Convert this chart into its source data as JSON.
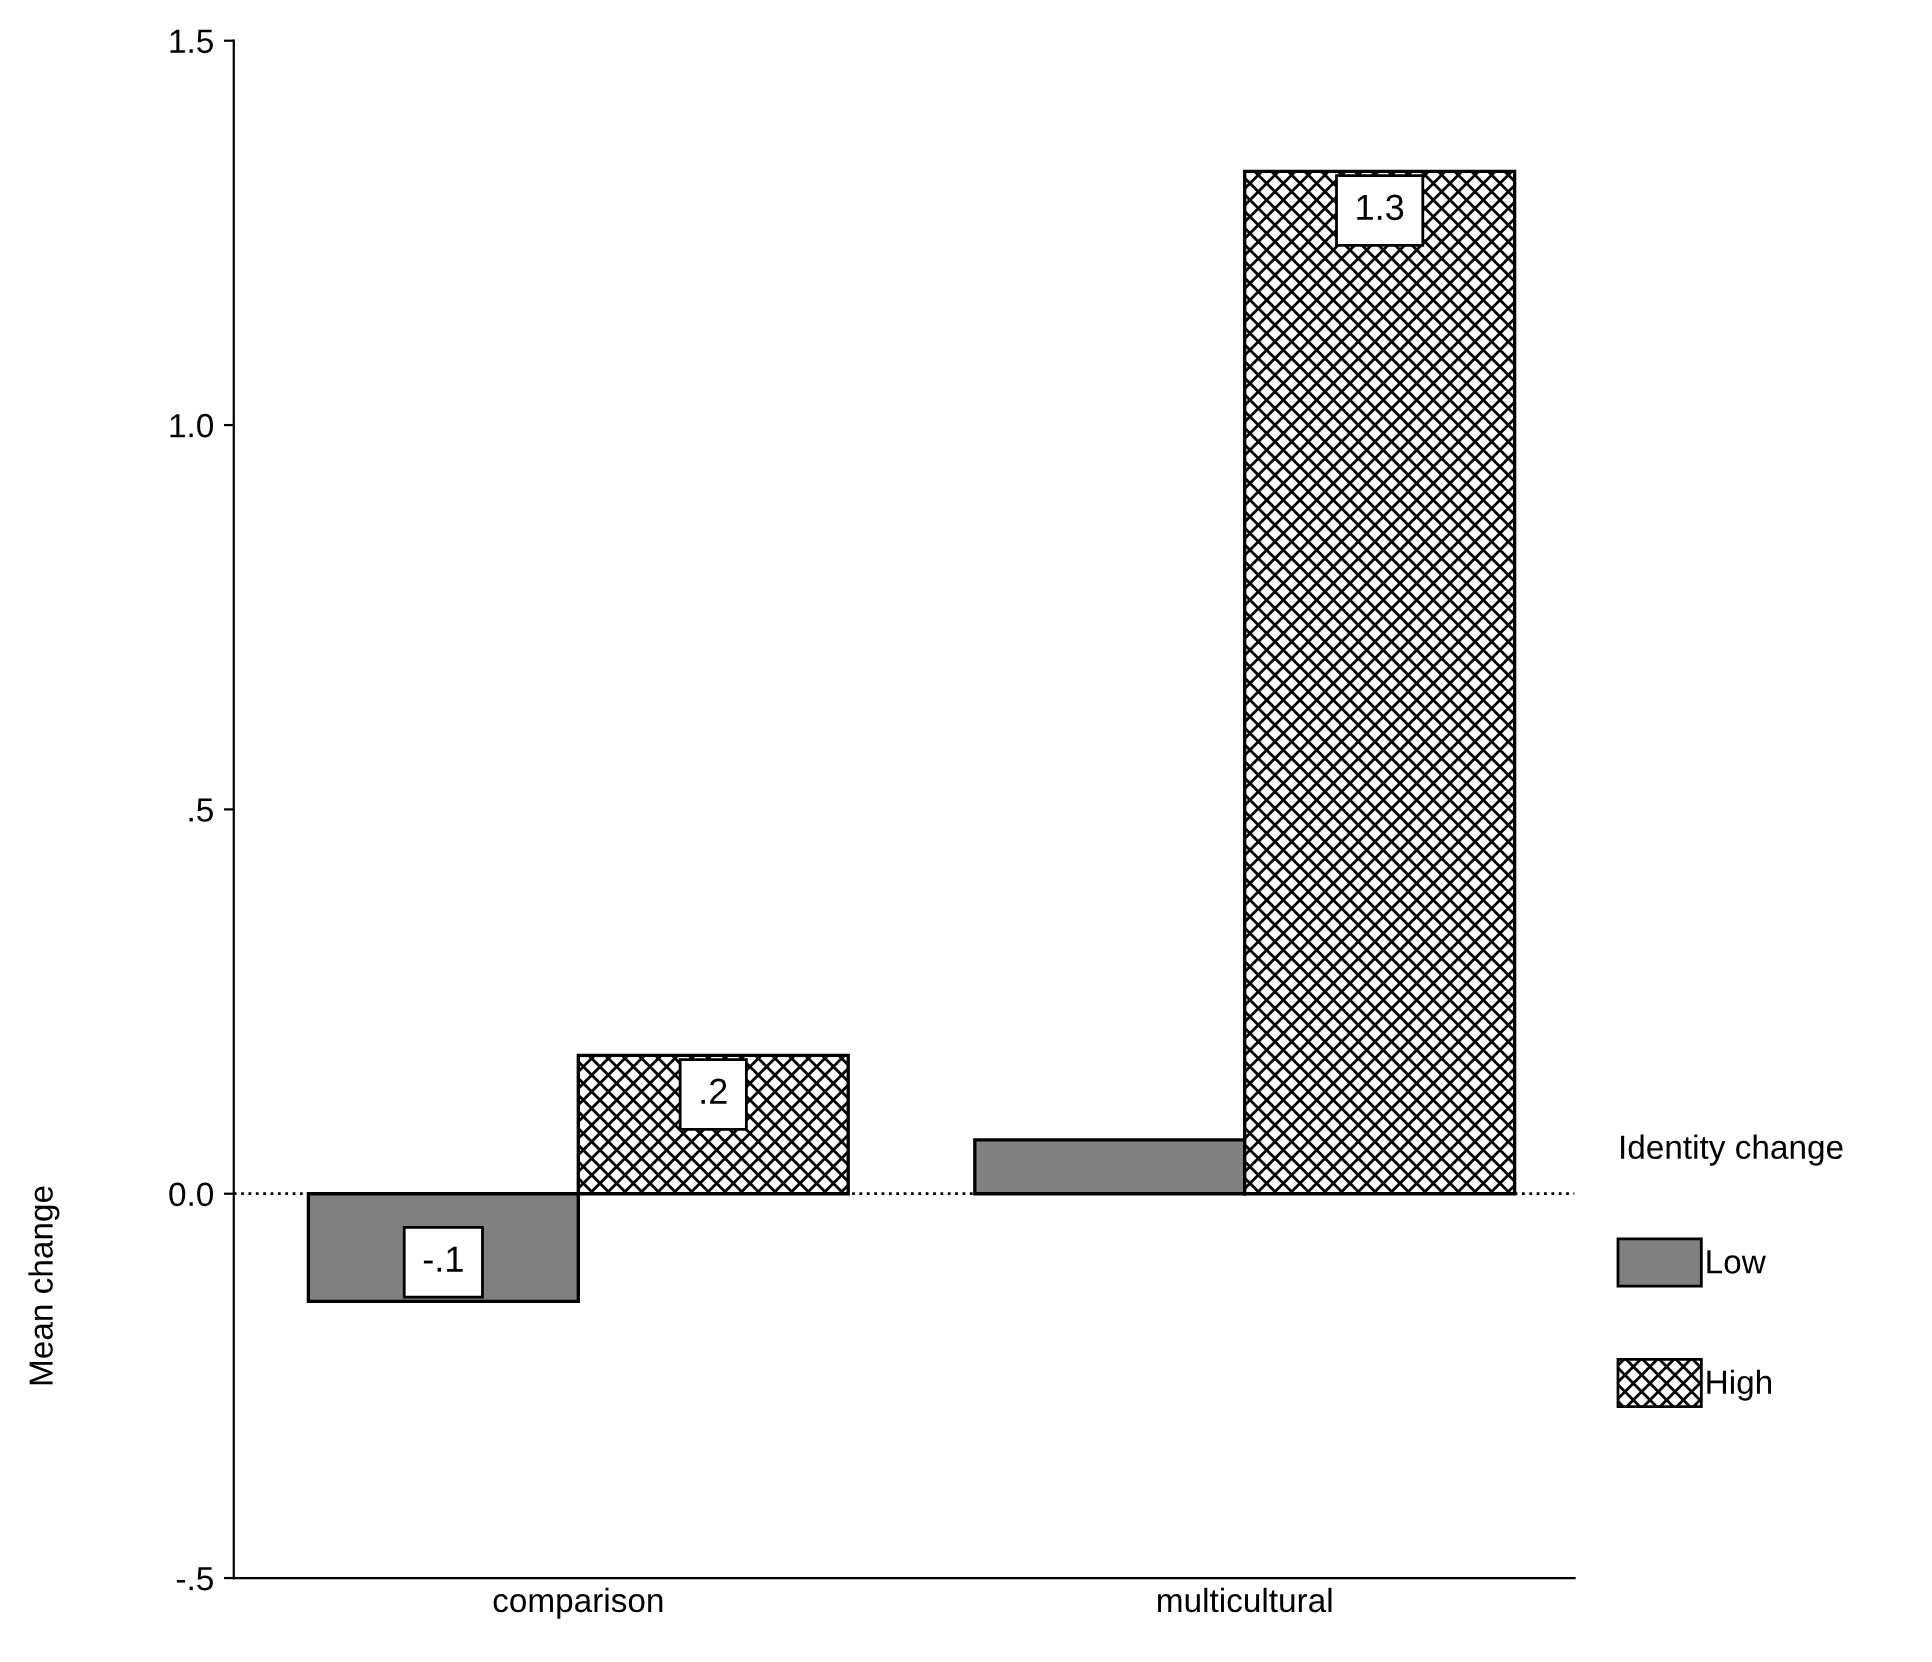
{
  "chart_data": {
    "type": "bar",
    "ylabel": "Mean change",
    "categories": [
      "comparison",
      "multicultural"
    ],
    "series": [
      {
        "name": "Low",
        "color": "#808080",
        "values": [
          -0.14,
          0.07
        ],
        "value_labels": [
          "-.1",
          null
        ]
      },
      {
        "name": "High",
        "color": "#000000",
        "values": [
          0.18,
          1.33
        ],
        "value_labels": [
          ".2",
          "1.3"
        ]
      }
    ],
    "ylim": [
      -0.5,
      1.5
    ],
    "yticks": [
      {
        "value": -0.5,
        "label": "-.5"
      },
      {
        "value": 0,
        "label": "0.0"
      },
      {
        "value": 0.5,
        "label": ".5"
      },
      {
        "value": 1.0,
        "label": "1.0"
      },
      {
        "value": 1.5,
        "label": "1.5"
      }
    ],
    "ref_lines": [
      {
        "axis": "y",
        "value": 0,
        "line_style": "dotted",
        "color": "#000000"
      }
    ],
    "legend": "right",
    "legend_title": "Identity change",
    "grid": false
  }
}
